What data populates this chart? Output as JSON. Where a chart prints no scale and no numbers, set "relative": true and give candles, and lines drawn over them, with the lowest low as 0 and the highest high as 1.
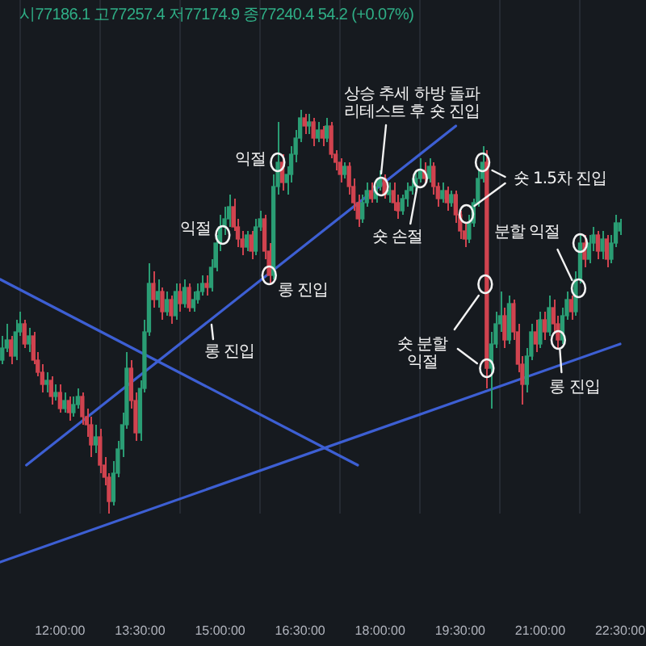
{
  "chart_data": {
    "type": "candlestick",
    "relative": true,
    "subtitle": "시77186.1 고77257.4 저77174.9 종77240.4 54.2 (+0.07%)",
    "x": [
      10.917,
      11,
      11.083,
      11.167,
      11.25,
      11.333,
      11.417,
      11.5,
      11.583,
      11.667,
      11.75,
      11.833,
      11.917,
      12,
      12.083,
      12.167,
      12.25,
      12.333,
      12.417,
      12.5,
      12.583,
      12.667,
      12.75,
      12.833,
      12.917,
      13,
      13.083,
      13.167,
      13.25,
      13.333,
      13.417,
      13.5,
      13.583,
      13.667,
      13.75,
      13.833,
      13.917,
      14,
      14.083,
      14.167,
      14.25,
      14.333,
      14.417,
      14.5,
      14.583,
      14.667,
      14.75,
      14.833,
      14.917,
      15,
      15.083,
      15.167,
      15.25,
      15.333,
      15.417,
      15.5,
      15.583,
      15.667,
      15.75,
      15.833,
      15.917,
      16,
      16.083,
      16.167,
      16.25,
      16.333,
      16.417,
      16.5,
      16.583,
      16.667,
      16.75,
      16.833,
      16.917,
      17,
      17.083,
      17.167,
      17.25,
      17.333,
      17.417,
      17.5,
      17.583,
      17.667,
      17.75,
      17.833,
      17.917,
      18,
      18.083,
      18.167,
      18.25,
      18.333,
      18.417,
      18.5,
      18.583,
      18.667,
      18.75,
      18.833,
      18.917,
      19,
      19.083,
      19.167,
      19.25,
      19.333,
      19.417,
      19.5,
      19.583,
      19.667,
      19.75,
      19.833,
      19.917,
      20,
      20.083,
      20.167,
      20.25,
      20.333,
      20.417,
      20.5,
      20.583,
      20.667,
      20.75,
      20.833,
      20.917,
      21,
      21.083,
      21.167,
      21.25,
      21.333,
      21.417,
      21.5,
      21.583,
      21.667,
      21.75,
      21.833,
      21.917,
      22,
      22.083,
      22.167,
      22.25,
      22.333,
      22.417,
      22.5
    ],
    "ohlc": [
      [
        0.38,
        0.44,
        0.37,
        0.41
      ],
      [
        0.41,
        0.47,
        0.4,
        0.43
      ],
      [
        0.43,
        0.44,
        0.37,
        0.39
      ],
      [
        0.39,
        0.48,
        0.38,
        0.45
      ],
      [
        0.45,
        0.5,
        0.44,
        0.47
      ],
      [
        0.47,
        0.48,
        0.41,
        0.42
      ],
      [
        0.42,
        0.46,
        0.4,
        0.44
      ],
      [
        0.44,
        0.45,
        0.37,
        0.38
      ],
      [
        0.38,
        0.4,
        0.34,
        0.35
      ],
      [
        0.35,
        0.37,
        0.3,
        0.32
      ],
      [
        0.32,
        0.35,
        0.3,
        0.33
      ],
      [
        0.33,
        0.34,
        0.27,
        0.29
      ],
      [
        0.29,
        0.32,
        0.28,
        0.3
      ],
      [
        0.3,
        0.32,
        0.25,
        0.26
      ],
      [
        0.26,
        0.3,
        0.25,
        0.28
      ],
      [
        0.28,
        0.29,
        0.23,
        0.25
      ],
      [
        0.25,
        0.29,
        0.24,
        0.27
      ],
      [
        0.27,
        0.31,
        0.26,
        0.29
      ],
      [
        0.29,
        0.3,
        0.22,
        0.24
      ],
      [
        0.24,
        0.26,
        0.19,
        0.22
      ],
      [
        0.22,
        0.24,
        0.14,
        0.17
      ],
      [
        0.17,
        0.22,
        0.15,
        0.19
      ],
      [
        0.19,
        0.21,
        0.1,
        0.12
      ],
      [
        0.12,
        0.14,
        0.07,
        0.09
      ],
      [
        0.09,
        0.1,
        0,
        0.03
      ],
      [
        0.03,
        0.13,
        0.02,
        0.1
      ],
      [
        0.1,
        0.18,
        0.09,
        0.16
      ],
      [
        0.16,
        0.25,
        0.14,
        0.22
      ],
      [
        0.22,
        0.4,
        0.21,
        0.36
      ],
      [
        0.36,
        0.38,
        0.26,
        0.28
      ],
      [
        0.28,
        0.3,
        0.18,
        0.2
      ],
      [
        0.2,
        0.33,
        0.18,
        0.31
      ],
      [
        0.31,
        0.48,
        0.3,
        0.45
      ],
      [
        0.45,
        0.62,
        0.44,
        0.57
      ],
      [
        0.57,
        0.6,
        0.51,
        0.53
      ],
      [
        0.53,
        0.58,
        0.51,
        0.55
      ],
      [
        0.55,
        0.56,
        0.48,
        0.5
      ],
      [
        0.5,
        0.55,
        0.49,
        0.53
      ],
      [
        0.53,
        0.54,
        0.47,
        0.49
      ],
      [
        0.49,
        0.57,
        0.48,
        0.55
      ],
      [
        0.55,
        0.57,
        0.5,
        0.52
      ],
      [
        0.52,
        0.58,
        0.51,
        0.56
      ],
      [
        0.56,
        0.57,
        0.5,
        0.51
      ],
      [
        0.51,
        0.55,
        0.5,
        0.53
      ],
      [
        0.53,
        0.57,
        0.52,
        0.55
      ],
      [
        0.55,
        0.59,
        0.54,
        0.57
      ],
      [
        0.57,
        0.59,
        0.54,
        0.56
      ],
      [
        0.56,
        0.63,
        0.55,
        0.61
      ],
      [
        0.61,
        0.69,
        0.6,
        0.67
      ],
      [
        0.67,
        0.74,
        0.65,
        0.71
      ],
      [
        0.71,
        0.76,
        0.69,
        0.73
      ],
      [
        0.73,
        0.79,
        0.71,
        0.76
      ],
      [
        0.76,
        0.78,
        0.7,
        0.71
      ],
      [
        0.71,
        0.73,
        0.66,
        0.68
      ],
      [
        0.68,
        0.7,
        0.64,
        0.66
      ],
      [
        0.66,
        0.7,
        0.65,
        0.69
      ],
      [
        0.69,
        0.7,
        0.63,
        0.65
      ],
      [
        0.65,
        0.73,
        0.64,
        0.71
      ],
      [
        0.71,
        0.75,
        0.7,
        0.73
      ],
      [
        0.73,
        0.74,
        0.63,
        0.65
      ],
      [
        0.65,
        0.67,
        0.57,
        0.59
      ],
      [
        0.59,
        0.84,
        0.58,
        0.81
      ],
      [
        0.81,
        0.97,
        0.79,
        0.87
      ],
      [
        0.87,
        0.89,
        0.8,
        0.82
      ],
      [
        0.82,
        0.86,
        0.79,
        0.84
      ],
      [
        0.84,
        0.91,
        0.82,
        0.89
      ],
      [
        0.89,
        0.95,
        0.87,
        0.93
      ],
      [
        0.93,
        1,
        0.92,
        0.98
      ],
      [
        0.98,
        0.99,
        0.94,
        0.96
      ],
      [
        0.96,
        0.99,
        0.94,
        0.97
      ],
      [
        0.97,
        0.98,
        0.91,
        0.93
      ],
      [
        0.93,
        0.97,
        0.92,
        0.95
      ],
      [
        0.95,
        0.96,
        0.91,
        0.93
      ],
      [
        0.93,
        0.98,
        0.92,
        0.96
      ],
      [
        0.96,
        0.97,
        0.88,
        0.89
      ],
      [
        0.89,
        0.9,
        0.85,
        0.87
      ],
      [
        0.87,
        0.88,
        0.82,
        0.84
      ],
      [
        0.84,
        0.87,
        0.83,
        0.86
      ],
      [
        0.86,
        0.87,
        0.79,
        0.81
      ],
      [
        0.81,
        0.83,
        0.75,
        0.77
      ],
      [
        0.77,
        0.79,
        0.71,
        0.73
      ],
      [
        0.73,
        0.79,
        0.72,
        0.77
      ],
      [
        0.77,
        0.82,
        0.76,
        0.8
      ],
      [
        0.8,
        0.82,
        0.77,
        0.78
      ],
      [
        0.78,
        0.83,
        0.77,
        0.81
      ],
      [
        0.81,
        0.85,
        0.8,
        0.83
      ],
      [
        0.83,
        0.84,
        0.78,
        0.79
      ],
      [
        0.79,
        0.82,
        0.77,
        0.8
      ],
      [
        0.8,
        0.82,
        0.75,
        0.77
      ],
      [
        0.77,
        0.79,
        0.73,
        0.75
      ],
      [
        0.75,
        0.79,
        0.74,
        0.78
      ],
      [
        0.78,
        0.82,
        0.76,
        0.8
      ],
      [
        0.8,
        0.83,
        0.79,
        0.81
      ],
      [
        0.81,
        0.85,
        0.8,
        0.83
      ],
      [
        0.83,
        0.88,
        0.82,
        0.85
      ],
      [
        0.85,
        0.87,
        0.82,
        0.83
      ],
      [
        0.83,
        0.88,
        0.82,
        0.86
      ],
      [
        0.86,
        0.87,
        0.79,
        0.81
      ],
      [
        0.81,
        0.82,
        0.76,
        0.78
      ],
      [
        0.78,
        0.82,
        0.77,
        0.8
      ],
      [
        0.8,
        0.81,
        0.75,
        0.77
      ],
      [
        0.77,
        0.8,
        0.76,
        0.79
      ],
      [
        0.79,
        0.8,
        0.72,
        0.74
      ],
      [
        0.74,
        0.75,
        0.68,
        0.7
      ],
      [
        0.7,
        0.72,
        0.66,
        0.68
      ],
      [
        0.68,
        0.74,
        0.67,
        0.72
      ],
      [
        0.72,
        0.78,
        0.71,
        0.77
      ],
      [
        0.77,
        0.85,
        0.76,
        0.83
      ],
      [
        0.83,
        0.91,
        0.82,
        0.87
      ],
      [
        0.87,
        0.9,
        0.31,
        0.36
      ],
      [
        0.36,
        0.45,
        0.26,
        0.42
      ],
      [
        0.42,
        0.5,
        0.41,
        0.47
      ],
      [
        0.47,
        0.55,
        0.45,
        0.49
      ],
      [
        0.49,
        0.51,
        0.41,
        0.43
      ],
      [
        0.43,
        0.54,
        0.42,
        0.52
      ],
      [
        0.52,
        0.53,
        0.43,
        0.45
      ],
      [
        0.45,
        0.47,
        0.35,
        0.37
      ],
      [
        0.37,
        0.39,
        0.27,
        0.32
      ],
      [
        0.32,
        0.41,
        0.3,
        0.39
      ],
      [
        0.39,
        0.47,
        0.38,
        0.45
      ],
      [
        0.45,
        0.48,
        0.4,
        0.42
      ],
      [
        0.42,
        0.5,
        0.41,
        0.48
      ],
      [
        0.48,
        0.5,
        0.43,
        0.45
      ],
      [
        0.45,
        0.54,
        0.44,
        0.51
      ],
      [
        0.51,
        0.53,
        0.45,
        0.47
      ],
      [
        0.47,
        0.49,
        0.41,
        0.43
      ],
      [
        0.43,
        0.51,
        0.42,
        0.49
      ],
      [
        0.49,
        0.55,
        0.48,
        0.53
      ],
      [
        0.53,
        0.54,
        0.48,
        0.5
      ],
      [
        0.5,
        0.6,
        0.49,
        0.58
      ],
      [
        0.58,
        0.69,
        0.57,
        0.67
      ],
      [
        0.67,
        0.69,
        0.61,
        0.63
      ],
      [
        0.63,
        0.69,
        0.62,
        0.67
      ],
      [
        0.67,
        0.71,
        0.65,
        0.69
      ],
      [
        0.69,
        0.7,
        0.63,
        0.65
      ],
      [
        0.65,
        0.7,
        0.63,
        0.68
      ],
      [
        0.68,
        0.69,
        0.61,
        0.63
      ],
      [
        0.63,
        0.69,
        0.62,
        0.67
      ],
      [
        0.67,
        0.74,
        0.66,
        0.72
      ],
      [
        0.7,
        0.73,
        0.69,
        0.72
      ]
    ],
    "colors": [
      "#2a9d74",
      "#2a9d74",
      "#d0434f",
      "#2a9d74",
      "#2a9d74",
      "#d0434f",
      "#2a9d74",
      "#d0434f",
      "#d0434f",
      "#d0434f",
      "#2a9d74",
      "#d0434f",
      "#2a9d74",
      "#d0434f",
      "#2a9d74",
      "#d0434f",
      "#2a9d74",
      "#2a9d74",
      "#d0434f",
      "#d0434f",
      "#d0434f",
      "#2a9d74",
      "#d0434f",
      "#d0434f",
      "#d0434f",
      "#2a9d74",
      "#2a9d74",
      "#2a9d74",
      "#2a9d74",
      "#d0434f",
      "#d0434f",
      "#2a9d74",
      "#2a9d74",
      "#2a9d74",
      "#d0434f",
      "#2a9d74",
      "#d0434f",
      "#2a9d74",
      "#d0434f",
      "#2a9d74",
      "#d0434f",
      "#2a9d74",
      "#d0434f",
      "#2a9d74",
      "#2a9d74",
      "#2a9d74",
      "#d0434f",
      "#2a9d74",
      "#2a9d74",
      "#2a9d74",
      "#2a9d74",
      "#2a9d74",
      "#d0434f",
      "#d0434f",
      "#d0434f",
      "#2a9d74",
      "#d0434f",
      "#2a9d74",
      "#2a9d74",
      "#d0434f",
      "#d0434f",
      "#2a9d74",
      "#2a9d74",
      "#d0434f",
      "#2a9d74",
      "#2a9d74",
      "#2a9d74",
      "#2a9d74",
      "#d0434f",
      "#2a9d74",
      "#d0434f",
      "#2a9d74",
      "#d0434f",
      "#2a9d74",
      "#d0434f",
      "#d0434f",
      "#d0434f",
      "#2a9d74",
      "#d0434f",
      "#d0434f",
      "#d0434f",
      "#2a9d74",
      "#2a9d74",
      "#d0434f",
      "#2a9d74",
      "#2a9d74",
      "#d0434f",
      "#2a9d74",
      "#d0434f",
      "#d0434f",
      "#2a9d74",
      "#2a9d74",
      "#2a9d74",
      "#2a9d74",
      "#2a9d74",
      "#d0434f",
      "#2a9d74",
      "#d0434f",
      "#d0434f",
      "#2a9d74",
      "#d0434f",
      "#2a9d74",
      "#d0434f",
      "#d0434f",
      "#d0434f",
      "#2a9d74",
      "#2a9d74",
      "#2a9d74",
      "#2a9d74",
      "#d0434f",
      "#2a9d74",
      "#2a9d74",
      "#2a9d74",
      "#d0434f",
      "#2a9d74",
      "#d0434f",
      "#d0434f",
      "#d0434f",
      "#2a9d74",
      "#2a9d74",
      "#d0434f",
      "#2a9d74",
      "#d0434f",
      "#2a9d74",
      "#d0434f",
      "#d0434f",
      "#2a9d74",
      "#2a9d74",
      "#d0434f",
      "#2a9d74",
      "#2a9d74",
      "#d0434f",
      "#2a9d74",
      "#2a9d74",
      "#d0434f",
      "#2a9d74",
      "#d0434f",
      "#2a9d74",
      "#2a9d74",
      "#2a9d74"
    ],
    "xlim": [
      10.875,
      22.5
    ],
    "xticks": [
      {
        "value": 12,
        "label": "12:00:00"
      },
      {
        "value": 13.5,
        "label": "13:30:00"
      },
      {
        "value": 15,
        "label": "15:00:00"
      },
      {
        "value": 16.5,
        "label": "16:30:00"
      },
      {
        "value": 18,
        "label": "18:00:00"
      },
      {
        "value": 19.5,
        "label": "19:30:00"
      },
      {
        "value": 21,
        "label": "21:00:00"
      },
      {
        "value": 22.5,
        "label": "22:30:00"
      }
    ],
    "grid": "x",
    "series": [
      {
        "type": "line",
        "color": "#3d5fd3",
        "x": [
          11.37,
          19.42
        ],
        "values": [
          0.12,
          0.96
        ]
      },
      {
        "type": "line",
        "color": "#3d5fd3",
        "x": [
          10.88,
          17.58
        ],
        "values": [
          0.58,
          0.12
        ]
      },
      {
        "type": "line",
        "color": "#3d5fd3",
        "x": [
          10.88,
          22.5
        ],
        "values": [
          -0.12,
          0.42
        ]
      }
    ],
    "annotations": [
      {
        "text": "익절",
        "x": 16.08,
        "y": 0.87
      },
      {
        "text": "익절",
        "x": 15.05,
        "y": 0.69
      },
      {
        "text": "롱 진입",
        "x": 15.92,
        "y": 0.59
      },
      {
        "text": "롱 진입",
        "x": 14.81,
        "y": 0.48
      },
      {
        "text": "상승 추세 하방 돌파\n리테스트 후 숏 진입",
        "x": 18.02,
        "y": 0.81
      },
      {
        "text": "숏 손절",
        "x": 18.75,
        "y": 0.83
      },
      {
        "text": "숏 1.5차 진입",
        "x": 19.92,
        "y": 0.87
      },
      {
        "text": "숏 분할\n익절",
        "x": 20,
        "y": 0.36
      },
      {
        "text": "분할 익절",
        "x": 21.75,
        "y": 0.67
      },
      {
        "text": "롱 진입",
        "x": 21.34,
        "y": 0.43
      }
    ]
  }
}
